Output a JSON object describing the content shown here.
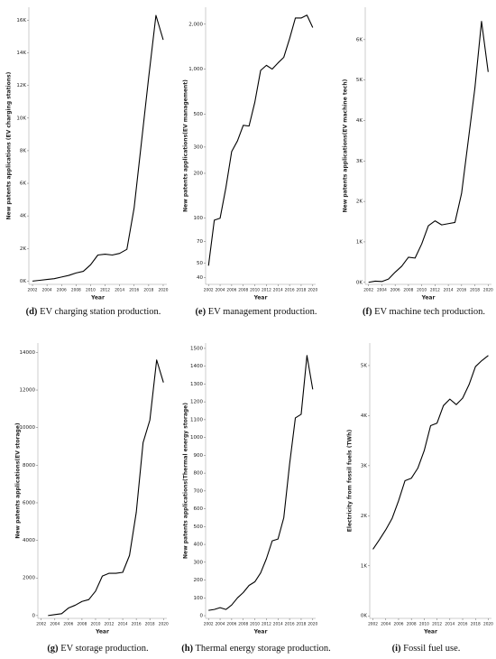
{
  "chart_data": [
    {
      "type": "line",
      "caption_label": "(d)",
      "caption": "EV charging station production.",
      "xlabel": "Year",
      "ylabel": "New patents applications (EV charging stations)",
      "color": "#000000",
      "x": [
        2002,
        2003,
        2004,
        2005,
        2006,
        2007,
        2008,
        2009,
        2010,
        2011,
        2012,
        2013,
        2014,
        2015,
        2016,
        2017,
        2018,
        2019,
        2020
      ],
      "values": [
        0,
        50,
        100,
        150,
        250,
        350,
        500,
        600,
        1000,
        1600,
        1650,
        1600,
        1700,
        1950,
        4500,
        8500,
        12500,
        16300,
        14800
      ],
      "xlim": [
        2001.5,
        2020.5
      ],
      "xticks": [
        2002,
        2004,
        2006,
        2008,
        2010,
        2012,
        2014,
        2016,
        2018,
        2020
      ],
      "ylim": [
        -200,
        16800
      ],
      "yticks": [
        {
          "value": 0,
          "label": "0K"
        },
        {
          "value": 2000,
          "label": "2K"
        },
        {
          "value": 4000,
          "label": "4K"
        },
        {
          "value": 6000,
          "label": "6K"
        },
        {
          "value": 8000,
          "label": "8K"
        },
        {
          "value": 10000,
          "label": "10K"
        },
        {
          "value": 12000,
          "label": "12K"
        },
        {
          "value": 14000,
          "label": "14K"
        },
        {
          "value": 16000,
          "label": "16K"
        }
      ]
    },
    {
      "type": "line",
      "caption_label": "(e)",
      "caption": "EV management production.",
      "xlabel": "Year",
      "ylabel": "New patents applications(EV management)",
      "color": "#000000",
      "log_scale": true,
      "x": [
        2002,
        2003,
        2004,
        2005,
        2006,
        2007,
        2008,
        2009,
        2010,
        2011,
        2012,
        2013,
        2014,
        2015,
        2016,
        2017,
        2018,
        2019,
        2020
      ],
      "values": [
        48,
        97,
        100,
        160,
        280,
        330,
        420,
        415,
        600,
        980,
        1060,
        1000,
        1100,
        1200,
        1600,
        2200,
        2200,
        2300,
        1900
      ],
      "xlim": [
        2001.5,
        2020.5
      ],
      "xticks": [
        2002,
        2004,
        2006,
        2008,
        2010,
        2012,
        2014,
        2016,
        2018,
        2020
      ],
      "ylim": [
        36,
        2600
      ],
      "yticks": [
        40,
        50,
        70,
        100,
        200,
        300,
        500,
        {
          "value": 1000,
          "label": "1,000"
        },
        {
          "value": 2000,
          "label": "2,000"
        }
      ]
    },
    {
      "type": "line",
      "caption_label": "(f)",
      "caption": "EV machine tech production.",
      "xlabel": "Year",
      "ylabel": "New patents applications(EV machine tech)",
      "color": "#000000",
      "x": [
        2002,
        2003,
        2004,
        2005,
        2006,
        2007,
        2008,
        2009,
        2010,
        2011,
        2012,
        2013,
        2014,
        2015,
        2016,
        2017,
        2018,
        2019,
        2020
      ],
      "values": [
        0,
        30,
        20,
        80,
        250,
        400,
        620,
        600,
        950,
        1400,
        1520,
        1420,
        1450,
        1480,
        2200,
        3500,
        4800,
        6450,
        5200
      ],
      "xlim": [
        2001.5,
        2020.5
      ],
      "xticks": [
        2002,
        2004,
        2006,
        2008,
        2010,
        2012,
        2014,
        2016,
        2018,
        2020
      ],
      "ylim": [
        -50,
        6800
      ],
      "yticks": [
        {
          "value": 0,
          "label": "0K"
        },
        {
          "value": 1000,
          "label": "1K"
        },
        {
          "value": 2000,
          "label": "2K"
        },
        {
          "value": 3000,
          "label": "3K"
        },
        {
          "value": 4000,
          "label": "4K"
        },
        {
          "value": 5000,
          "label": "5K"
        },
        {
          "value": 6000,
          "label": "6K"
        }
      ]
    },
    {
      "type": "line",
      "caption_label": "(g)",
      "caption": "EV storage production.",
      "xlabel": "Year",
      "ylabel": "New patents applications(EV storage)",
      "color": "#000000",
      "x": [
        2003,
        2004,
        2005,
        2006,
        2007,
        2008,
        2009,
        2010,
        2011,
        2012,
        2013,
        2014,
        2015,
        2016,
        2017,
        2018,
        2019,
        2020
      ],
      "values": [
        0,
        50,
        100,
        400,
        550,
        750,
        850,
        1300,
        2100,
        2250,
        2250,
        2300,
        3200,
        5500,
        9200,
        10400,
        13600,
        12400
      ],
      "xlim": [
        2001.5,
        2020.5
      ],
      "xticks": [
        2002,
        2004,
        2006,
        2008,
        2010,
        2012,
        2014,
        2016,
        2018,
        2020
      ],
      "ylim": [
        -150,
        14500
      ],
      "yticks": [
        0,
        2000,
        4000,
        6000,
        8000,
        10000,
        12000,
        14000
      ]
    },
    {
      "type": "line",
      "caption_label": "(h)",
      "caption": "Thermal energy storage production.",
      "xlabel": "Year",
      "ylabel": "New patents applications(Thermal energy storage)",
      "color": "#000000",
      "x": [
        2002,
        2003,
        2004,
        2005,
        2006,
        2007,
        2008,
        2009,
        2010,
        2011,
        2012,
        2013,
        2014,
        2015,
        2016,
        2017,
        2018,
        2019,
        2020
      ],
      "values": [
        30,
        35,
        45,
        35,
        60,
        100,
        130,
        170,
        190,
        240,
        320,
        420,
        430,
        550,
        850,
        1110,
        1130,
        1460,
        1270
      ],
      "xlim": [
        2001.5,
        2020.5
      ],
      "xticks": [
        2002,
        2004,
        2006,
        2008,
        2010,
        2012,
        2014,
        2016,
        2018,
        2020
      ],
      "ylim": [
        -15,
        1530
      ],
      "yticks": [
        0,
        100,
        200,
        300,
        400,
        500,
        600,
        700,
        800,
        900,
        1000,
        1100,
        1200,
        1300,
        1400,
        1500
      ]
    },
    {
      "type": "line",
      "caption_label": "(i)",
      "caption": "Fossil fuel use.",
      "xlabel": "Year",
      "ylabel": "Electricity from fossil fuels (TWh)",
      "color": "#000000",
      "x": [
        2002,
        2003,
        2004,
        2005,
        2006,
        2007,
        2008,
        2009,
        2010,
        2011,
        2012,
        2013,
        2014,
        2015,
        2016,
        2017,
        2018,
        2019,
        2020
      ],
      "values": [
        1330,
        1520,
        1720,
        1950,
        2300,
        2700,
        2750,
        2950,
        3300,
        3800,
        3850,
        4200,
        4330,
        4220,
        4350,
        4620,
        4980,
        5100,
        5200
      ],
      "xlim": [
        2001.5,
        2020.5
      ],
      "xticks": [
        2002,
        2004,
        2006,
        2008,
        2010,
        2012,
        2014,
        2016,
        2018,
        2020
      ],
      "ylim": [
        -50,
        5450
      ],
      "yticks": [
        {
          "value": 0,
          "label": "0K"
        },
        {
          "value": 1000,
          "label": "1K"
        },
        {
          "value": 2000,
          "label": "2K"
        },
        {
          "value": 3000,
          "label": "3K"
        },
        {
          "value": 4000,
          "label": "4K"
        },
        {
          "value": 5000,
          "label": "5K"
        }
      ]
    }
  ]
}
